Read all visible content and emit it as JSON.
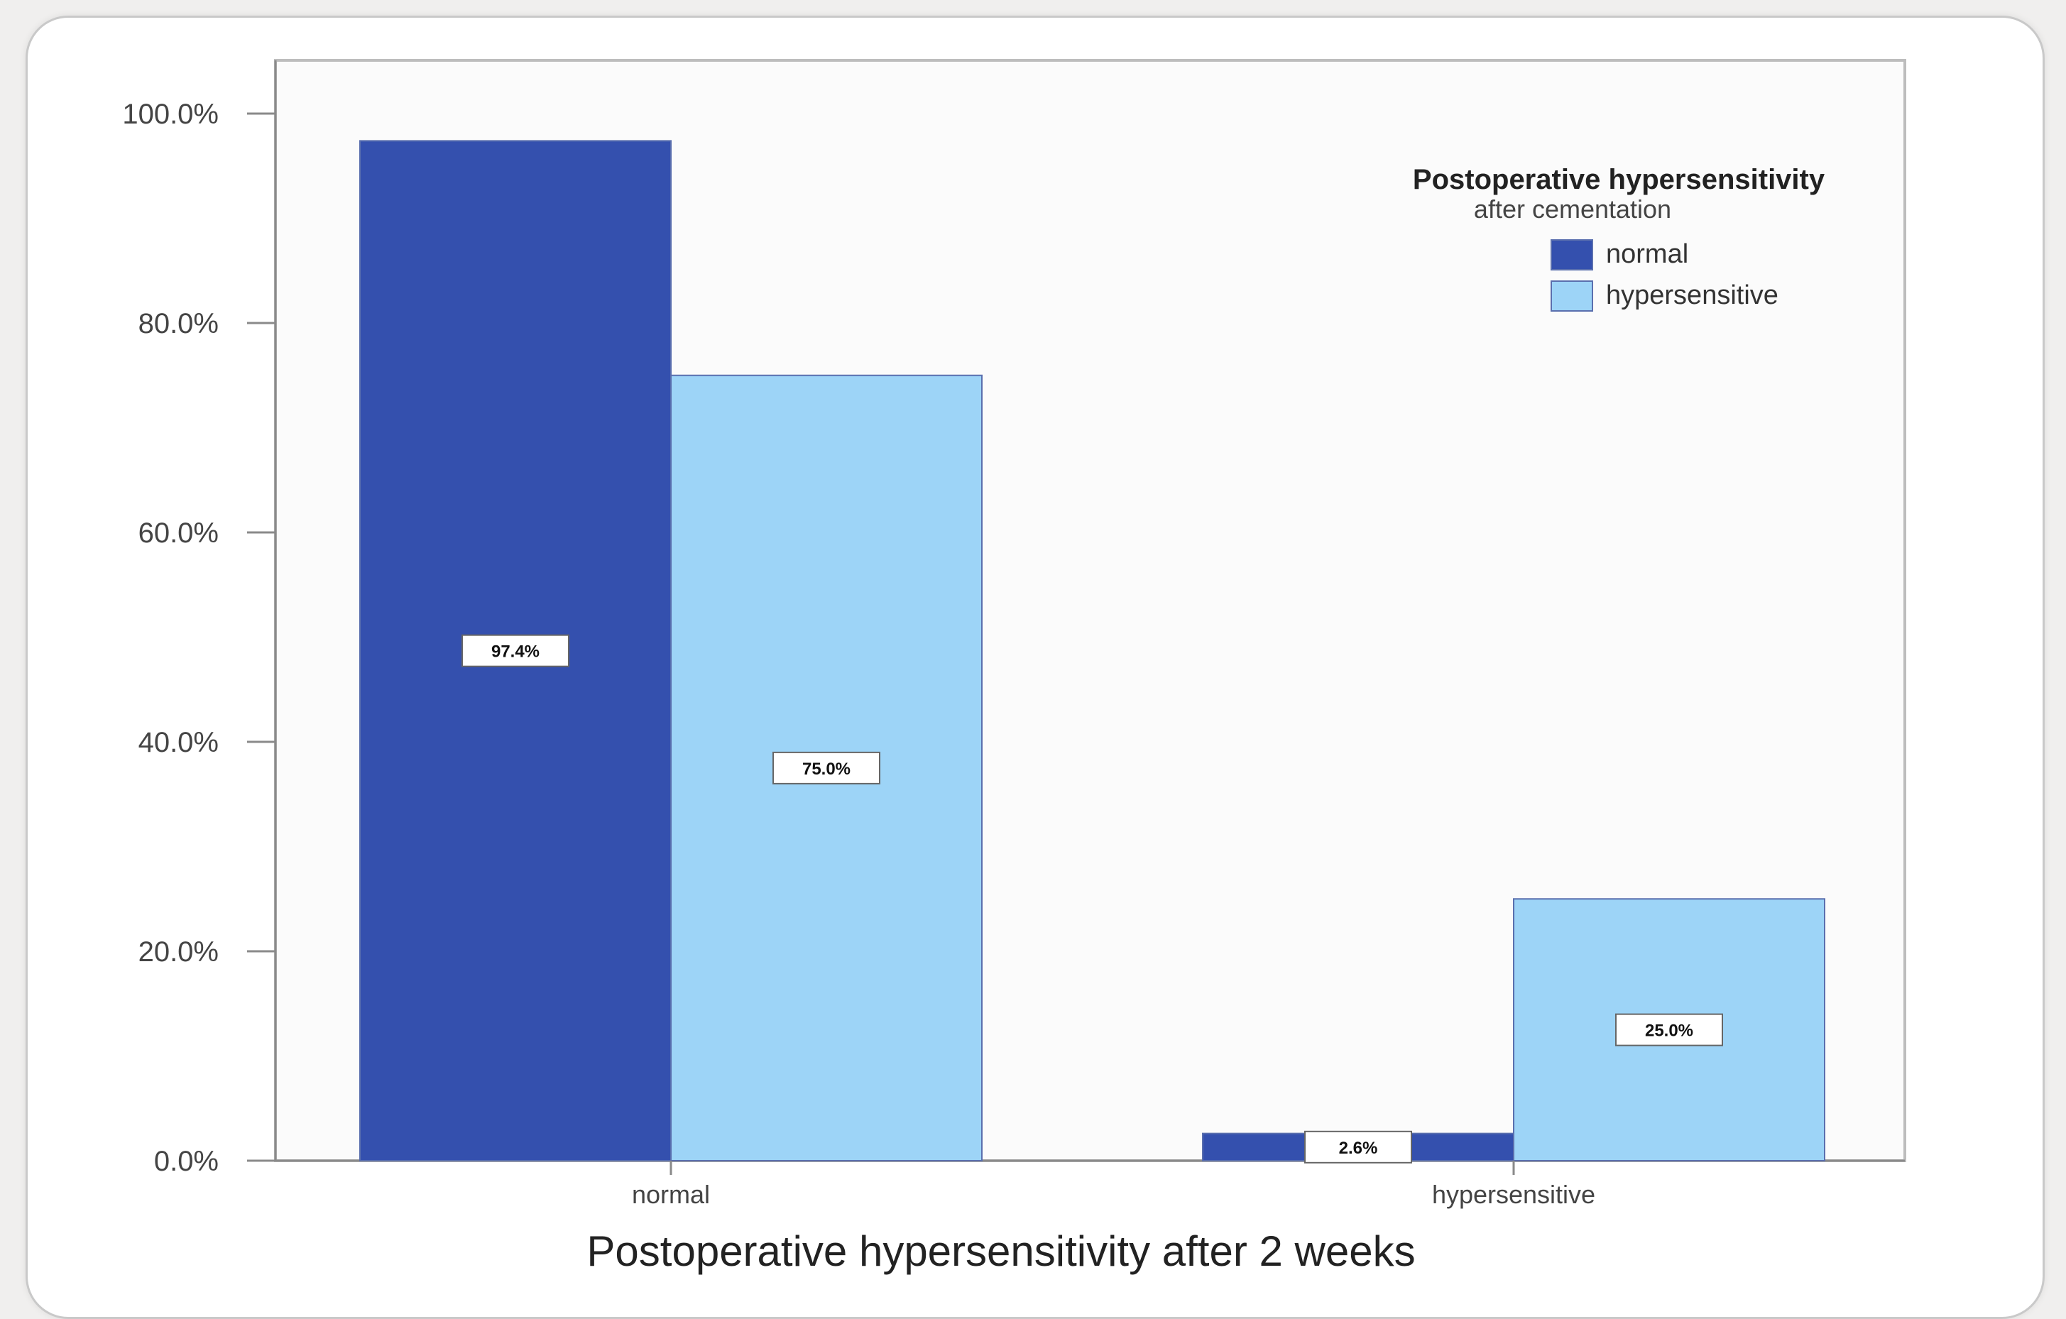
{
  "chart_data": {
    "type": "bar",
    "xlabel": "Postoperative hypersensitivity after 2 weeks",
    "ylabel": "",
    "categories": [
      "normal",
      "hypersensitive"
    ],
    "ylim": [
      0,
      100
    ],
    "y_ticks": [
      "0.0%",
      "20.0%",
      "40.0%",
      "60.0%",
      "80.0%",
      "100.0%"
    ],
    "legend": {
      "title": "Postoperative hypersensitivity",
      "subtitle": "after cementation",
      "position": "top-right"
    },
    "series": [
      {
        "name": "normal",
        "color": "#3450ae",
        "values": [
          97.4,
          2.6
        ],
        "labels": [
          "97.4%",
          "2.6%"
        ]
      },
      {
        "name": "hypersensitive",
        "color": "#9dd4f7",
        "values": [
          75.0,
          25.0
        ],
        "labels": [
          "75.0%",
          "25.0%"
        ]
      }
    ],
    "grid": false
  }
}
